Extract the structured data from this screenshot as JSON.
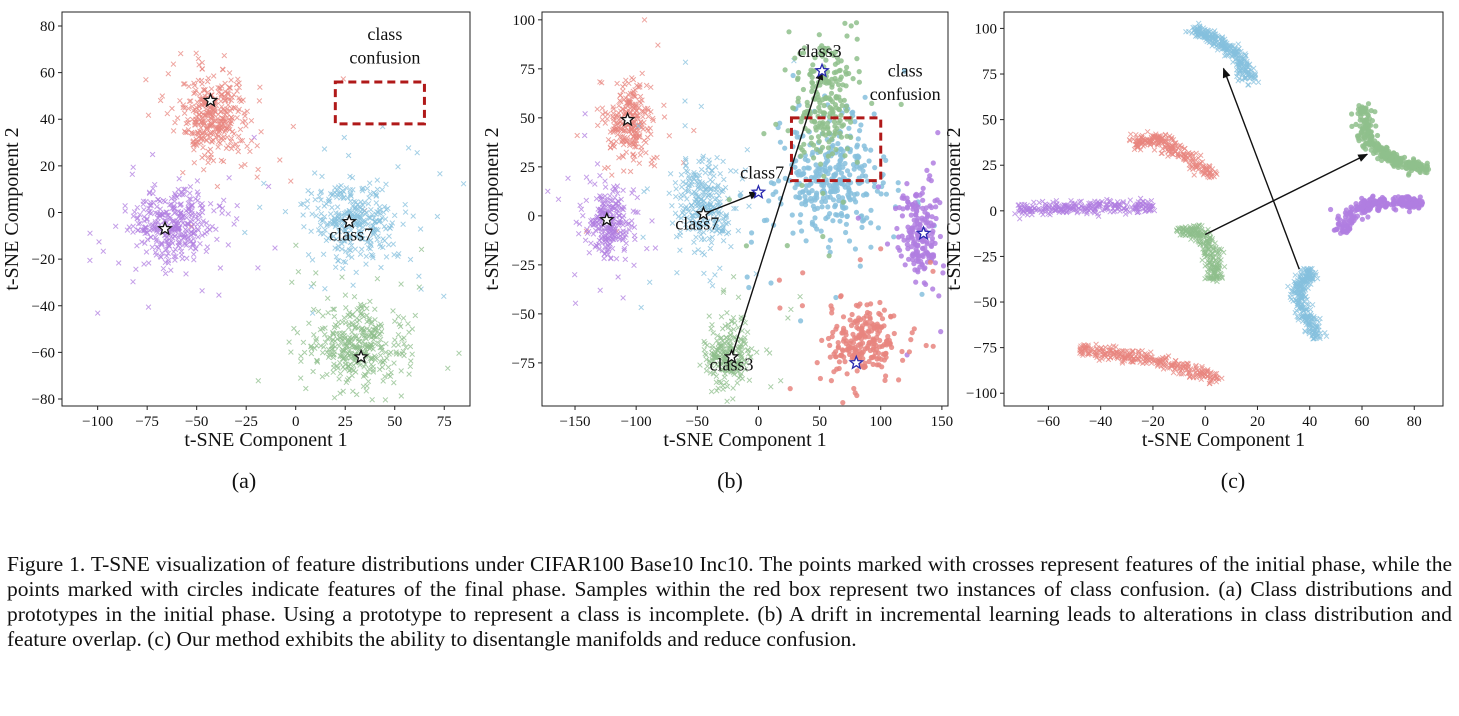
{
  "colors": {
    "red": "#e8857f",
    "purple": "#b07ee0",
    "blue": "#86c0dd",
    "green": "#8fbf8c",
    "box": "#b01919"
  },
  "chart_data": [
    {
      "type": "scatter",
      "panel": "(a)",
      "xlabel": "t-SNE Component 1",
      "ylabel": "t-SNE Component 2",
      "xlim": [
        -118,
        88
      ],
      "ylim": [
        -83,
        86
      ],
      "xticks": [
        "−100",
        "−75",
        "−50",
        "−25",
        "0",
        "25",
        "50",
        "75"
      ],
      "yticks": [
        "−80",
        "−60",
        "−40",
        "−20",
        "0",
        "20",
        "40",
        "60",
        "80"
      ],
      "annotations": [
        {
          "text": "class7",
          "x": 28,
          "y": -12
        },
        {
          "text": "class",
          "x": 45,
          "y": 74
        },
        {
          "text": "confusion",
          "x": 45,
          "y": 64
        }
      ],
      "confusion_box": {
        "x0": 20,
        "x1": 65,
        "y0": 38,
        "y1": 56
      },
      "series": [
        {
          "name": "red",
          "color": "red",
          "marker": "cross",
          "center": [
            -42,
            42
          ],
          "spread": [
            9,
            9
          ],
          "n": 360
        },
        {
          "name": "purple",
          "color": "purple",
          "marker": "cross",
          "center": [
            -62,
            -6
          ],
          "spread": [
            10,
            8
          ],
          "n": 360
        },
        {
          "name": "blue",
          "color": "blue",
          "marker": "cross",
          "center": [
            30,
            -3
          ],
          "spread": [
            11,
            8
          ],
          "n": 330
        },
        {
          "name": "green",
          "color": "green",
          "marker": "cross",
          "center": [
            32,
            -57
          ],
          "spread": [
            11,
            8
          ],
          "n": 380
        }
      ],
      "prototypes": [
        [
          -43,
          48
        ],
        [
          -66,
          -7
        ],
        [
          27,
          -4
        ],
        [
          33,
          -62
        ]
      ]
    },
    {
      "type": "scatter",
      "panel": "(b)",
      "xlabel": "t-SNE Component 1",
      "ylabel": "t-SNE Component 2",
      "xlim": [
        -177,
        155
      ],
      "ylim": [
        -97,
        104
      ],
      "xticks": [
        "−150",
        "−100",
        "−50",
        "0",
        "50",
        "100",
        "150"
      ],
      "yticks": [
        "−75",
        "−50",
        "−25",
        "0",
        "25",
        "50",
        "75",
        "100"
      ],
      "annotations": [
        {
          "text": "class3",
          "x": 50,
          "y": 81
        },
        {
          "text": "class",
          "x": 120,
          "y": 71
        },
        {
          "text": "confusion",
          "x": 120,
          "y": 59
        },
        {
          "text": "class7",
          "x": 3,
          "y": 19
        },
        {
          "text": "class7",
          "x": -50,
          "y": -7
        },
        {
          "text": "class3",
          "x": -22,
          "y": -79
        }
      ],
      "confusion_box": {
        "x0": 27,
        "x1": 100,
        "y0": 18,
        "y1": 50
      },
      "arrows": [
        [
          -45,
          1,
          0,
          12
        ],
        [
          -22,
          -72,
          52,
          74
        ]
      ],
      "series": [
        {
          "name": "red-initial",
          "color": "red",
          "marker": "cross",
          "center": [
            -105,
            47
          ],
          "spread": [
            9,
            9
          ],
          "n": 260
        },
        {
          "name": "purple-initial",
          "color": "purple",
          "marker": "cross",
          "center": [
            -122,
            -4
          ],
          "spread": [
            9,
            9
          ],
          "n": 260
        },
        {
          "name": "blue-initial",
          "color": "blue",
          "marker": "cross",
          "center": [
            -45,
            5
          ],
          "spread": [
            12,
            12
          ],
          "n": 280
        },
        {
          "name": "green-initial",
          "color": "green",
          "marker": "cross",
          "center": [
            -25,
            -70
          ],
          "spread": [
            9,
            8
          ],
          "n": 240
        },
        {
          "name": "blue-final",
          "color": "blue",
          "marker": "circle",
          "center": [
            58,
            18
          ],
          "spread": [
            22,
            14
          ],
          "n": 360
        },
        {
          "name": "green-final",
          "color": "green",
          "marker": "circle",
          "center": [
            55,
            58
          ],
          "spread": [
            12,
            16
          ],
          "n": 230
        },
        {
          "name": "purple-final",
          "color": "purple",
          "marker": "circle",
          "center": [
            132,
            -8
          ],
          "spread": [
            8,
            12
          ],
          "n": 200
        },
        {
          "name": "red-final",
          "color": "red",
          "marker": "circle",
          "center": [
            85,
            -65
          ],
          "spread": [
            14,
            10
          ],
          "n": 240
        }
      ],
      "prototypes": [
        [
          -107,
          49
        ],
        [
          -124,
          -2
        ],
        [
          -45,
          1
        ],
        [
          -22,
          -72
        ],
        [
          0,
          12
        ],
        [
          52,
          74
        ],
        [
          135,
          -9
        ],
        [
          80,
          -75
        ]
      ]
    },
    {
      "type": "scatter",
      "panel": "(c)",
      "xlabel": "t-SNE Component 1",
      "ylabel": "t-SNE Component 2",
      "xlim": [
        -77,
        91
      ],
      "ylim": [
        -107,
        109
      ],
      "xticks": [
        "−60",
        "−40",
        "−20",
        "0",
        "20",
        "40",
        "60",
        "80"
      ],
      "yticks": [
        "−100",
        "−75",
        "−50",
        "−25",
        "0",
        "25",
        "50",
        "75",
        "100"
      ],
      "arrows": [
        [
          0,
          -13,
          62,
          31
        ],
        [
          36,
          -32,
          7,
          78
        ]
      ],
      "series": [
        {
          "name": "blue-top",
          "color": "blue",
          "marker": "cross",
          "path": [
            [
              -5,
              100
            ],
            [
              5,
              93
            ],
            [
              12,
              85
            ],
            [
              18,
              70
            ]
          ],
          "n": 280
        },
        {
          "name": "red-mid",
          "color": "red",
          "marker": "cross",
          "path": [
            [
              -28,
              37
            ],
            [
              -18,
              40
            ],
            [
              -8,
              30
            ],
            [
              5,
              18
            ]
          ],
          "n": 240
        },
        {
          "name": "purple-left",
          "color": "purple",
          "marker": "cross",
          "path": [
            [
              -72,
              0
            ],
            [
              -50,
              2
            ],
            [
              -20,
              2
            ]
          ],
          "n": 260
        },
        {
          "name": "green-mid",
          "color": "green",
          "marker": "cross",
          "path": [
            [
              -10,
              -10
            ],
            [
              -2,
              -12
            ],
            [
              3,
              -25
            ],
            [
              4,
              -38
            ]
          ],
          "n": 240
        },
        {
          "name": "blue-low",
          "color": "blue",
          "marker": "cross",
          "path": [
            [
              40,
              -32
            ],
            [
              35,
              -48
            ],
            [
              43,
              -70
            ]
          ],
          "n": 280
        },
        {
          "name": "red-bottom",
          "color": "red",
          "marker": "cross",
          "path": [
            [
              -48,
              -76
            ],
            [
              -20,
              -82
            ],
            [
              5,
              -92
            ]
          ],
          "n": 300
        },
        {
          "name": "green-right",
          "color": "green",
          "marker": "circle",
          "path": [
            [
              60,
              58
            ],
            [
              62,
              38
            ],
            [
              72,
              28
            ],
            [
              84,
              22
            ]
          ],
          "n": 260
        },
        {
          "name": "purple-right",
          "color": "purple",
          "marker": "circle",
          "path": [
            [
              52,
              -12
            ],
            [
              58,
              2
            ],
            [
              70,
              5
            ],
            [
              84,
              4
            ]
          ],
          "n": 240
        }
      ]
    }
  ],
  "subcaptions": [
    "(a)",
    "(b)",
    "(c)"
  ],
  "caption": "Figure 1. T-SNE visualization of feature distributions under CIFAR100 Base10 Inc10. The points marked with crosses represent features of the initial phase, while the points marked with circles indicate features of the final phase. Samples within the red box represent two instances of class confusion. (a) Class distributions and prototypes in the initial phase. Using a prototype to represent a class is incomplete. (b) A drift in incremental learning leads to alterations in class distribution and feature overlap. (c) Our method exhibits the ability to disentangle manifolds and reduce confusion."
}
